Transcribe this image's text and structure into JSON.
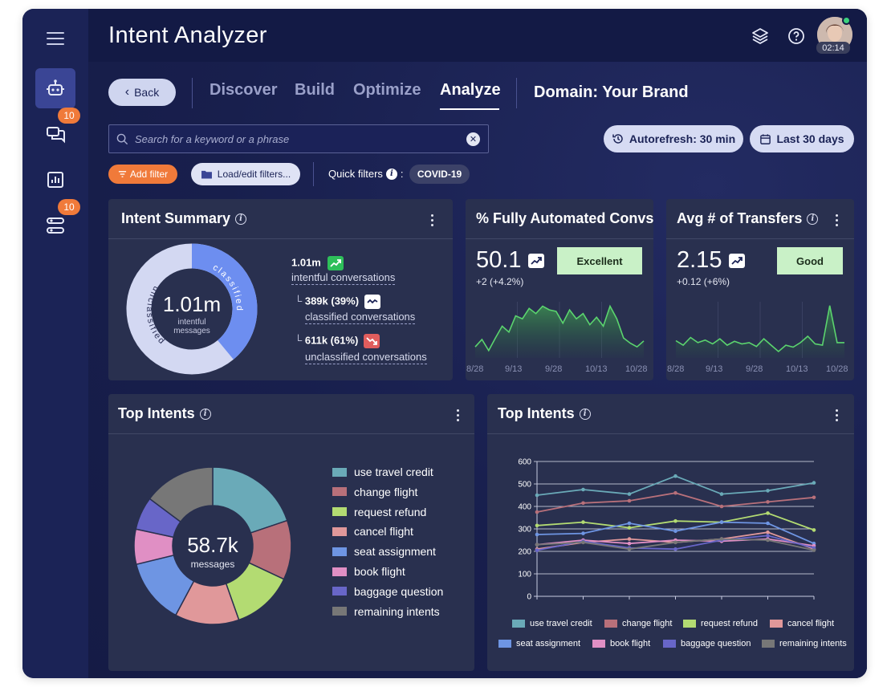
{
  "app": {
    "title": "Intent Analyzer",
    "avatar_time": "02:14"
  },
  "sidebar": {
    "items": [
      {
        "name": "bot",
        "badge": null
      },
      {
        "name": "conversations",
        "badge": "10"
      },
      {
        "name": "reports",
        "badge": null
      },
      {
        "name": "workflows",
        "badge": "10"
      }
    ]
  },
  "nav": {
    "back_label": "Back",
    "tabs": [
      "Discover",
      "Build",
      "Optimize",
      "Analyze"
    ],
    "active_tab": "Analyze",
    "domain_label": "Domain: Your Brand"
  },
  "toolbar": {
    "search_placeholder": "Search for a keyword or a phrase",
    "autorefresh_label": "Autorefresh: 30 min",
    "date_range_label": "Last 30 days",
    "add_filter_label": "Add filter",
    "load_filters_label": "Load/edit filters...",
    "quick_filters_label": "Quick filters",
    "quick_filters_chip": "COVID-19"
  },
  "intent_summary": {
    "title": "Intent Summary",
    "center_value": "1.01m",
    "center_caption_line1": "intentful",
    "center_caption_line2": "messages",
    "ring_label_classified": "classified",
    "ring_label_unclassified": "unclassified",
    "classified_fraction": 0.39,
    "total_value": "1.01m",
    "total_label": "intentful conversations",
    "classified_value": "389k (39%)",
    "classified_label": "classified conversations",
    "unclassified_value": "611k (61%)",
    "unclassified_label": "unclassified conversations",
    "colors": {
      "classified": "#6d8ef0",
      "unclassified": "#d3d8f2",
      "up": "#2ebf5a",
      "down": "#e05d5d"
    }
  },
  "automated": {
    "title": "% Fully Automated Convs",
    "value": "50.1",
    "delta": "+2 (+4.2%)",
    "rating": "Excellent",
    "x_labels": [
      "8/28",
      "9/13",
      "9/28",
      "10/13",
      "10/28"
    ],
    "series": [
      10,
      20,
      5,
      22,
      38,
      30,
      52,
      48,
      62,
      55,
      65,
      60,
      58,
      42,
      60,
      48,
      55,
      40,
      50,
      38,
      65,
      48,
      22,
      15,
      10,
      18
    ]
  },
  "transfers": {
    "title": "Avg # of Transfers",
    "value": "2.15",
    "delta": "+0.12 (+6%)",
    "rating": "Good",
    "x_labels": [
      "8/28",
      "9/13",
      "9/28",
      "10/13",
      "10/28"
    ],
    "series": [
      15,
      8,
      20,
      12,
      16,
      10,
      18,
      8,
      14,
      10,
      12,
      6,
      18,
      8,
      -2,
      8,
      5,
      12,
      22,
      10,
      8,
      70,
      12,
      12
    ]
  },
  "top_intents_pie": {
    "title": "Top Intents",
    "center_value": "58.7k",
    "center_caption": "messages",
    "legend": [
      "use travel credit",
      "change flight",
      "request refund",
      "cancel flight",
      "seat assignment",
      "book flight",
      "baggage question",
      "remaining intents"
    ],
    "values": [
      19.8,
      12.2,
      12.6,
      13.2,
      13.4,
      7.2,
      6.8,
      14.8
    ],
    "colors": [
      "#6aaab8",
      "#b8707a",
      "#b3db72",
      "#e0989a",
      "#6e95e3",
      "#e08fc4",
      "#6866c8",
      "#777777"
    ]
  },
  "chart_data": {
    "type": "line",
    "title": "Top Intents",
    "x": [
      1,
      2,
      3,
      4,
      5,
      6,
      7
    ],
    "ylim": [
      0,
      600
    ],
    "yticks": [
      0,
      100,
      200,
      300,
      400,
      500,
      600
    ],
    "grid": true,
    "legend_position": "bottom",
    "series": [
      {
        "name": "use travel credit",
        "values": [
          450,
          475,
          455,
          535,
          455,
          470,
          505
        ]
      },
      {
        "name": "change flight",
        "values": [
          375,
          415,
          425,
          460,
          400,
          420,
          440
        ]
      },
      {
        "name": "request refund",
        "values": [
          315,
          330,
          305,
          335,
          330,
          370,
          295
        ]
      },
      {
        "name": "cancel flight",
        "values": [
          210,
          240,
          255,
          240,
          255,
          285,
          210
        ]
      },
      {
        "name": "seat assignment",
        "values": [
          275,
          280,
          325,
          290,
          330,
          325,
          235
        ]
      },
      {
        "name": "book flight",
        "values": [
          230,
          250,
          235,
          250,
          245,
          255,
          225
        ]
      },
      {
        "name": "baggage question",
        "values": [
          205,
          245,
          215,
          210,
          250,
          270,
          215
        ]
      },
      {
        "name": "remaining intents",
        "values": [
          230,
          240,
          210,
          240,
          255,
          250,
          205
        ]
      }
    ],
    "colors": [
      "#6aaab8",
      "#b8707a",
      "#b3db72",
      "#e0989a",
      "#6e95e3",
      "#e08fc4",
      "#6866c8",
      "#777777"
    ]
  }
}
